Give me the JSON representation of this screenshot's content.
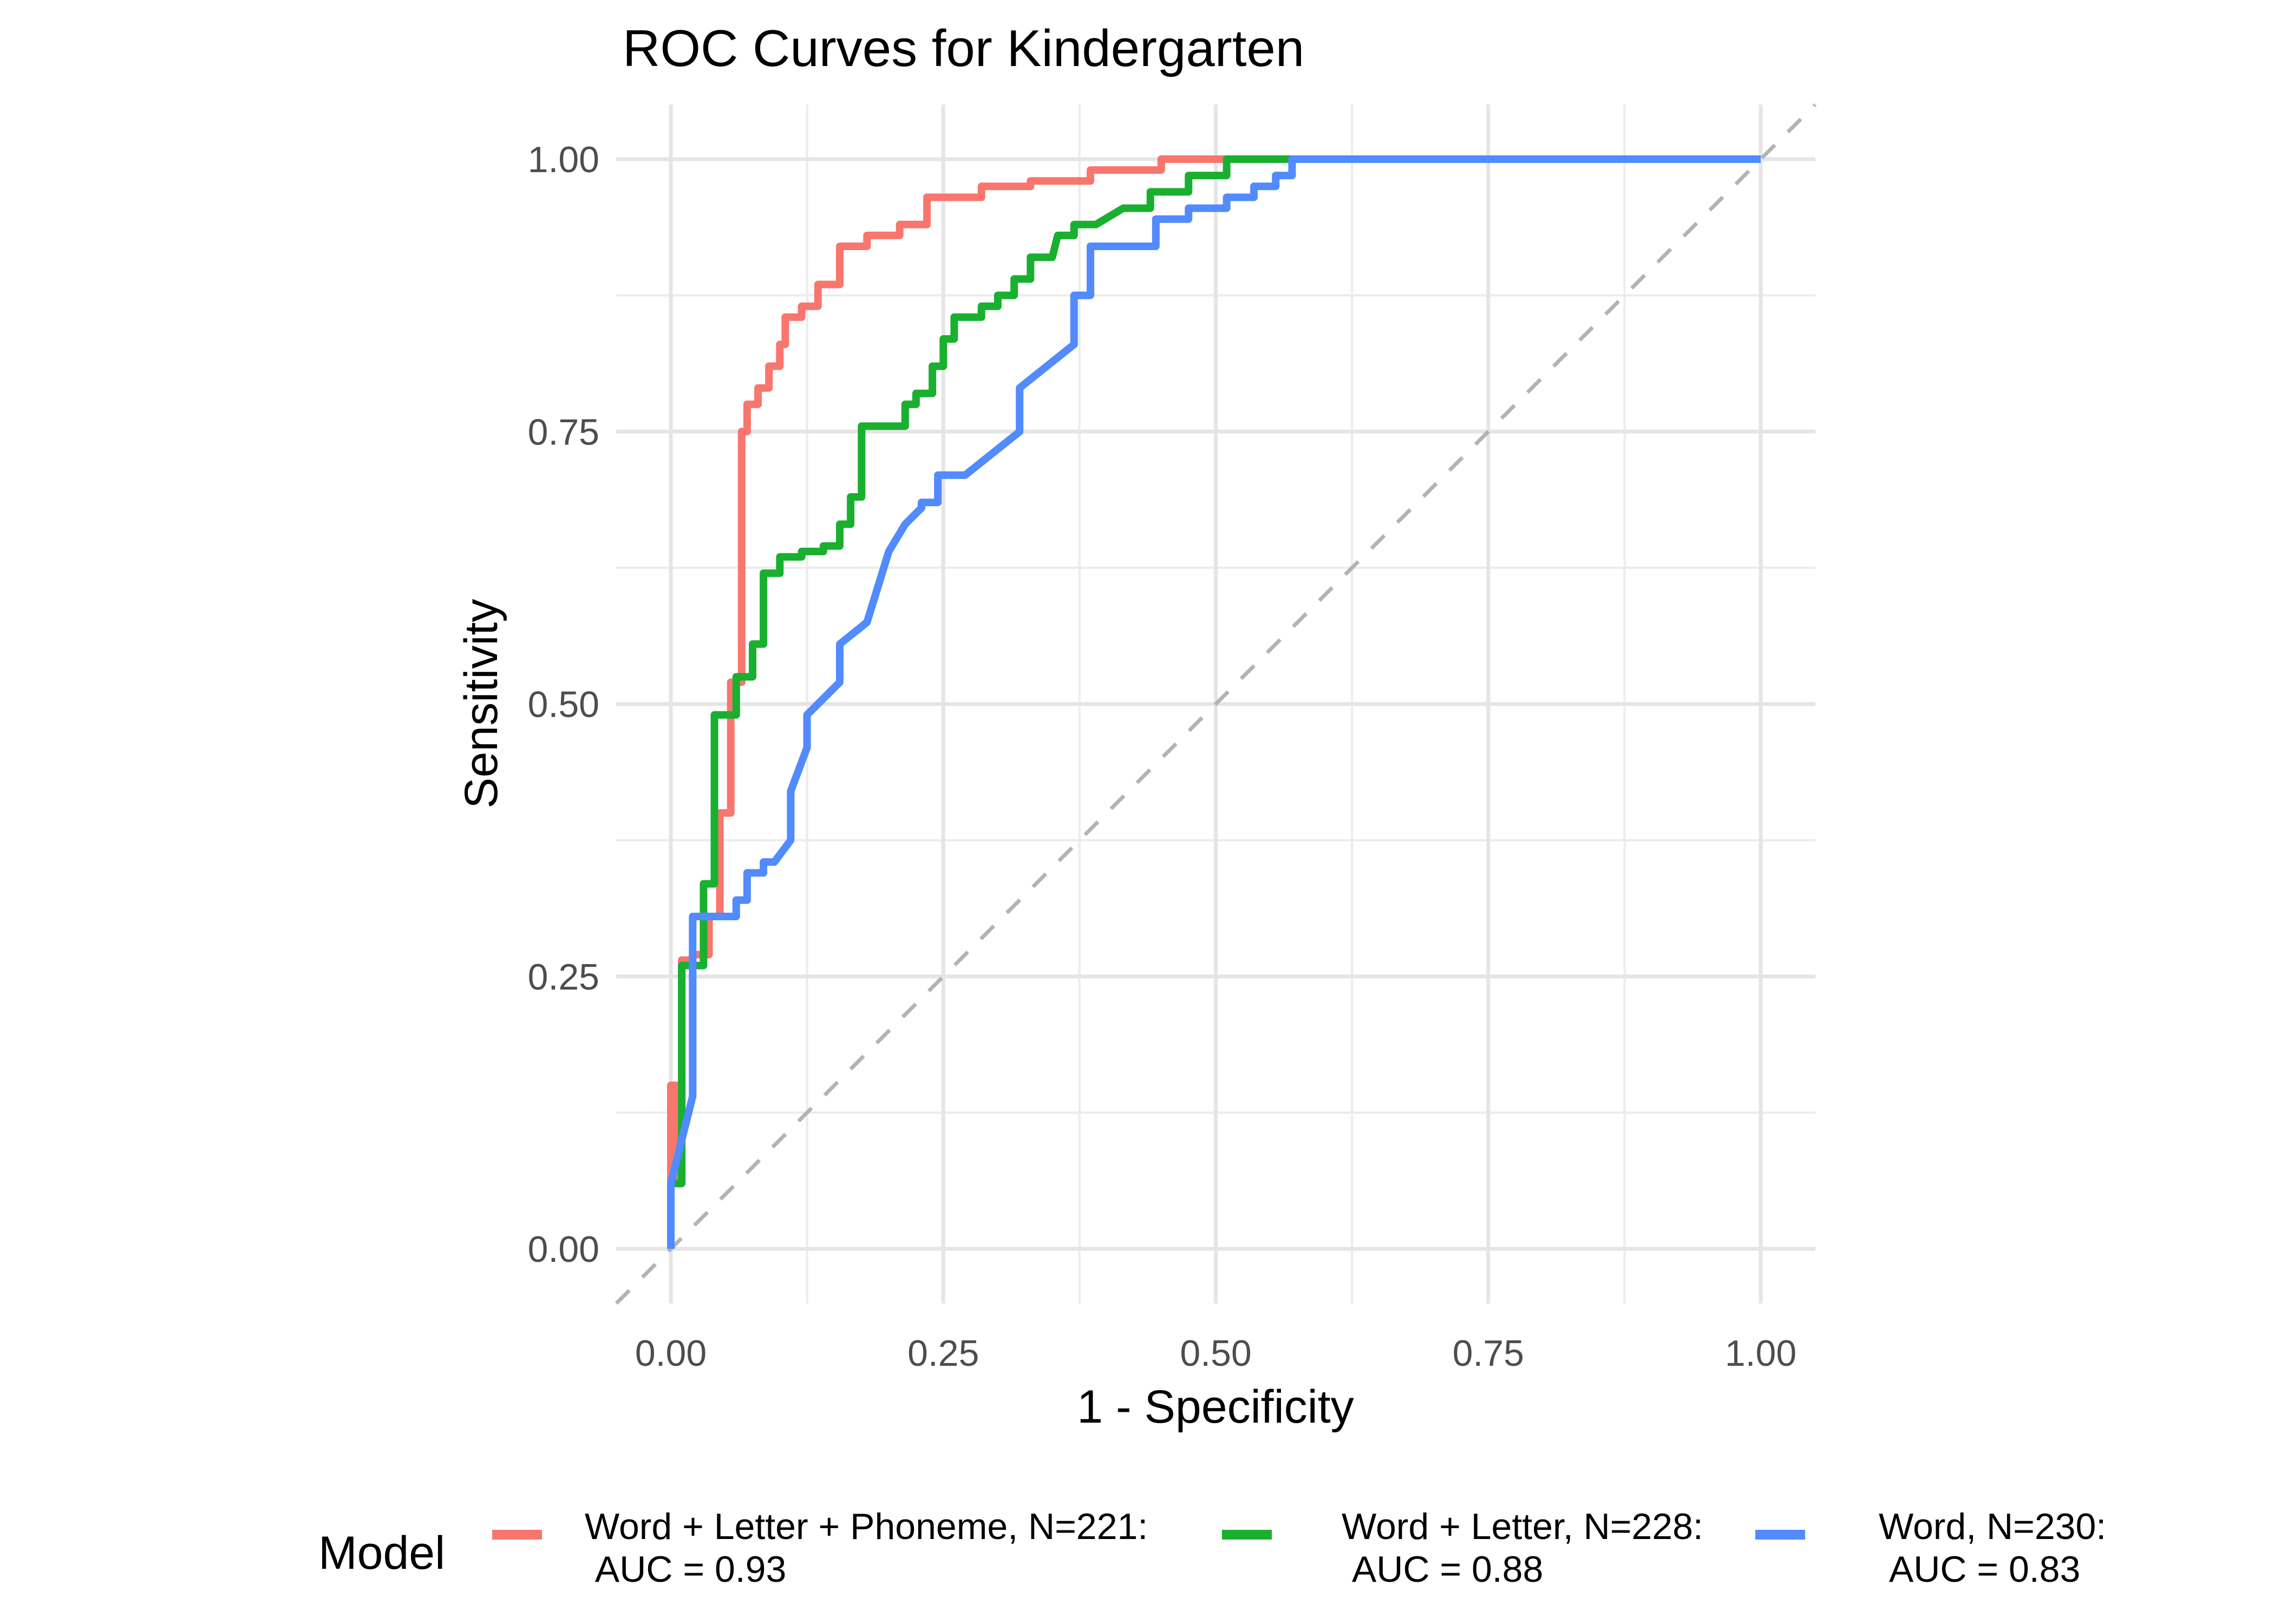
{
  "chart_data": {
    "type": "line",
    "title": "ROC Curves for Kindergarten",
    "xlabel": "1 - Specificity",
    "ylabel": "Sensitivity",
    "xlim": [
      0,
      1
    ],
    "ylim": [
      0,
      1
    ],
    "grid": true,
    "x_ticks": [
      "0.00",
      "0.25",
      "0.50",
      "0.75",
      "1.00"
    ],
    "y_ticks": [
      "0.00",
      "0.25",
      "0.50",
      "0.75",
      "1.00"
    ],
    "x_tick_values": [
      0,
      0.25,
      0.5,
      0.75,
      1
    ],
    "y_tick_values": [
      0,
      0.25,
      0.5,
      0.75,
      1
    ],
    "reference_line": {
      "x": [
        0,
        1
      ],
      "y": [
        0,
        1
      ],
      "style": "dashed",
      "color": "#b3b3b3"
    },
    "legend": {
      "title": "Model",
      "position": "bottom"
    },
    "series": [
      {
        "name": "Word + Letter + Phoneme, N=221:",
        "auc_label": " AUC = 0.93",
        "color": "#F8766D",
        "x": [
          0,
          0,
          0.005,
          0.005,
          0.01,
          0.01,
          0.02,
          0.02,
          0.035,
          0.035,
          0.045,
          0.045,
          0.055,
          0.055,
          0.065,
          0.065,
          0.07,
          0.07,
          0.08,
          0.08,
          0.09,
          0.09,
          0.1,
          0.1,
          0.105,
          0.105,
          0.12,
          0.12,
          0.135,
          0.135,
          0.155,
          0.155,
          0.18,
          0.18,
          0.21,
          0.21,
          0.235,
          0.235,
          0.285,
          0.285,
          0.33,
          0.33,
          0.385,
          0.385,
          0.45,
          0.45,
          0.51,
          1
        ],
        "y": [
          0,
          0.15,
          0.15,
          0.06,
          0.06,
          0.265,
          0.265,
          0.27,
          0.27,
          0.305,
          0.305,
          0.4,
          0.4,
          0.52,
          0.52,
          0.75,
          0.75,
          0.775,
          0.775,
          0.79,
          0.79,
          0.81,
          0.81,
          0.83,
          0.83,
          0.855,
          0.855,
          0.865,
          0.865,
          0.885,
          0.885,
          0.92,
          0.92,
          0.93,
          0.93,
          0.94,
          0.94,
          0.965,
          0.965,
          0.975,
          0.975,
          0.98,
          0.98,
          0.99,
          0.99,
          1.0,
          1.0,
          1.0
        ]
      },
      {
        "name": "Word + Letter, N=228:",
        "auc_label": " AUC = 0.88",
        "color": "#19B02F",
        "x": [
          0,
          0,
          0.01,
          0.01,
          0.03,
          0.03,
          0.04,
          0.04,
          0.06,
          0.06,
          0.075,
          0.075,
          0.085,
          0.085,
          0.1,
          0.1,
          0.12,
          0.12,
          0.14,
          0.14,
          0.155,
          0.155,
          0.165,
          0.165,
          0.175,
          0.175,
          0.215,
          0.215,
          0.225,
          0.225,
          0.24,
          0.24,
          0.25,
          0.25,
          0.26,
          0.26,
          0.285,
          0.285,
          0.3,
          0.3,
          0.315,
          0.315,
          0.33,
          0.33,
          0.35,
          0.355,
          0.37,
          0.37,
          0.39,
          0.415,
          0.44,
          0.44,
          0.475,
          0.475,
          0.51,
          0.51,
          0.56,
          1
        ],
        "y": [
          0,
          0.06,
          0.06,
          0.26,
          0.26,
          0.335,
          0.335,
          0.49,
          0.49,
          0.525,
          0.525,
          0.555,
          0.555,
          0.62,
          0.62,
          0.635,
          0.635,
          0.64,
          0.64,
          0.645,
          0.645,
          0.665,
          0.665,
          0.69,
          0.69,
          0.755,
          0.755,
          0.775,
          0.775,
          0.785,
          0.785,
          0.81,
          0.81,
          0.835,
          0.835,
          0.855,
          0.855,
          0.865,
          0.865,
          0.875,
          0.875,
          0.89,
          0.89,
          0.91,
          0.91,
          0.93,
          0.93,
          0.94,
          0.94,
          0.955,
          0.955,
          0.97,
          0.97,
          0.985,
          0.985,
          1.0,
          1.0,
          1.0
        ]
      },
      {
        "name": "Word, N=230:",
        "auc_label": " AUC = 0.83",
        "color": "#528AFF",
        "x": [
          0,
          0,
          0.01,
          0.02,
          0.02,
          0.06,
          0.06,
          0.07,
          0.07,
          0.085,
          0.085,
          0.095,
          0.11,
          0.11,
          0.125,
          0.125,
          0.155,
          0.155,
          0.18,
          0.2,
          0.215,
          0.23,
          0.23,
          0.245,
          0.245,
          0.27,
          0.32,
          0.32,
          0.37,
          0.37,
          0.385,
          0.385,
          0.415,
          0.445,
          0.445,
          0.475,
          0.475,
          0.51,
          0.51,
          0.535,
          0.535,
          0.555,
          0.555,
          0.57,
          0.57,
          1
        ],
        "y": [
          0,
          0.06,
          0.1,
          0.14,
          0.305,
          0.305,
          0.32,
          0.32,
          0.345,
          0.345,
          0.355,
          0.355,
          0.375,
          0.42,
          0.46,
          0.49,
          0.52,
          0.555,
          0.575,
          0.64,
          0.665,
          0.68,
          0.685,
          0.685,
          0.71,
          0.71,
          0.75,
          0.79,
          0.83,
          0.875,
          0.875,
          0.92,
          0.92,
          0.92,
          0.945,
          0.945,
          0.955,
          0.955,
          0.965,
          0.965,
          0.975,
          0.975,
          0.985,
          0.985,
          1.0,
          1.0
        ]
      }
    ]
  }
}
